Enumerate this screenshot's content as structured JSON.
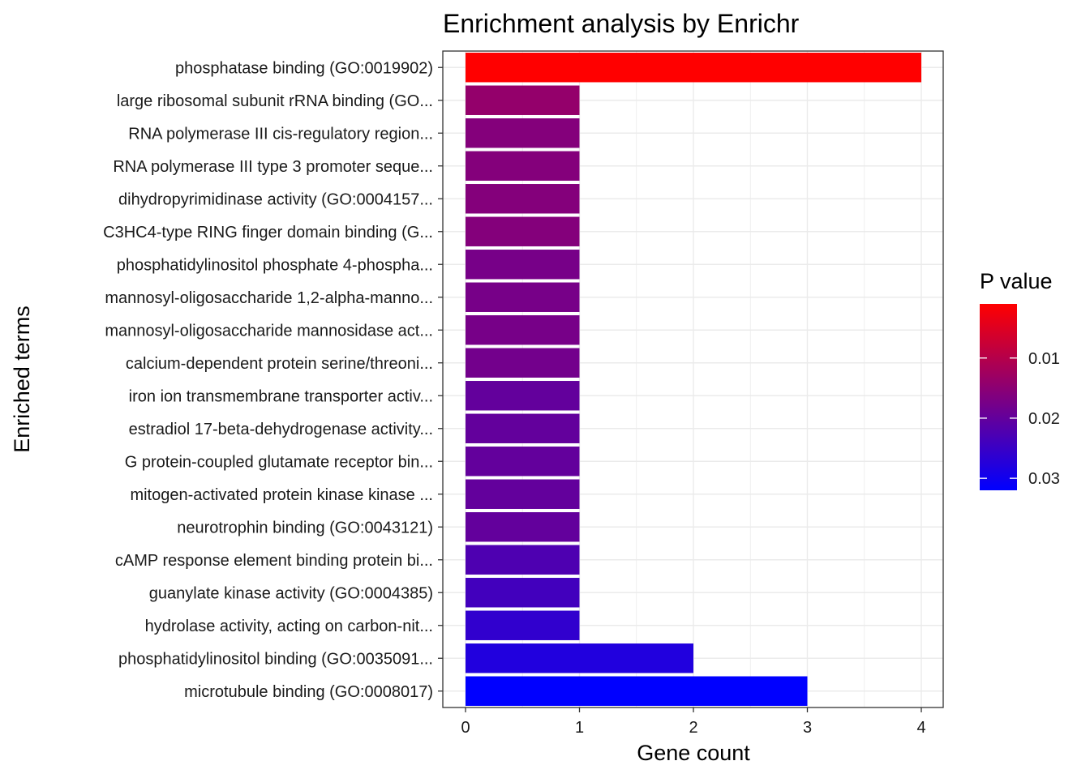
{
  "chart_data": {
    "type": "bar",
    "orientation": "horizontal",
    "title": "Enrichment analysis by Enrichr",
    "xlabel": "Gene count",
    "ylabel": "Enriched terms",
    "xlim": [
      0,
      4
    ],
    "x_ticks": [
      0,
      1,
      2,
      3,
      4
    ],
    "grid": true,
    "categories": [
      "phosphatase binding (GO:0019902)",
      "large ribosomal subunit rRNA binding (GO...",
      "RNA polymerase III cis-regulatory region...",
      "RNA polymerase III type 3 promoter seque...",
      "dihydropyrimidinase activity (GO:0004157...",
      "C3HC4-type RING finger domain binding (G...",
      "phosphatidylinositol phosphate 4-phospha...",
      "mannosyl-oligosaccharide 1,2-alpha-manno...",
      "mannosyl-oligosaccharide mannosidase act...",
      "calcium-dependent protein serine/threoni...",
      "iron ion transmembrane transporter activ...",
      "estradiol 17-beta-dehydrogenase activity...",
      "G protein-coupled glutamate receptor bin...",
      "mitogen-activated protein kinase kinase ...",
      "neurotrophin binding (GO:0043121)",
      "cAMP response element binding protein bi...",
      "guanylate kinase activity (GO:0004385)",
      "hydrolase activity, acting on carbon-nit...",
      "phosphatidylinositol binding (GO:0035091...",
      "microtubule binding (GO:0008017)"
    ],
    "values": [
      4,
      1,
      1,
      1,
      1,
      1,
      1,
      1,
      1,
      1,
      1,
      1,
      1,
      1,
      1,
      1,
      1,
      1,
      2,
      3
    ],
    "p_values": [
      0.001,
      0.014,
      0.016,
      0.016,
      0.016,
      0.016,
      0.0175,
      0.0175,
      0.0175,
      0.018,
      0.02,
      0.02,
      0.02,
      0.02,
      0.02,
      0.0225,
      0.024,
      0.026,
      0.028,
      0.032
    ],
    "legend": {
      "title": "P value",
      "placement": "right",
      "ticks": [
        0.01,
        0.02,
        0.03
      ],
      "tick_labels": [
        "0.01",
        "0.02",
        "0.03"
      ],
      "range": [
        0.001,
        0.032
      ],
      "low_color": "#ff0000",
      "high_color": "#0000ff"
    }
  }
}
